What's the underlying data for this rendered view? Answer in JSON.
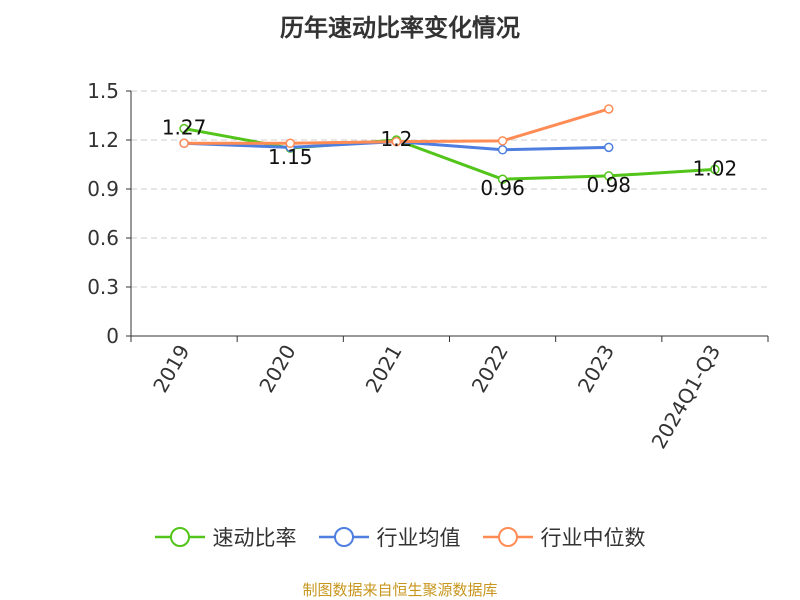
{
  "chart_data": {
    "type": "line",
    "title": "历年速动比率变化情况",
    "categories": [
      "2019",
      "2020",
      "2021",
      "2022",
      "2023",
      "2024Q1-Q3"
    ],
    "ylim": [
      0,
      1.5
    ],
    "yticks": [
      "0",
      "0.3",
      "0.6",
      "0.9",
      "1.2",
      "1.5"
    ],
    "grid": true,
    "legend_position": "bottom",
    "series": [
      {
        "name": "速动比率",
        "color": "#52c41a",
        "values": [
          1.27,
          1.15,
          1.2,
          0.96,
          0.98,
          1.02
        ],
        "labels": [
          "1.27",
          "1.15",
          "1.2",
          "0.96",
          "0.98",
          "1.02"
        ]
      },
      {
        "name": "行业均值",
        "color": "#4e7fe0",
        "values": [
          1.18,
          1.155,
          1.19,
          1.14,
          1.155,
          null
        ]
      },
      {
        "name": "行业中位数",
        "color": "#ff8c55",
        "values": [
          1.18,
          1.18,
          1.19,
          1.195,
          1.39,
          null
        ]
      }
    ]
  },
  "source": "制图数据来自恒生聚源数据库"
}
